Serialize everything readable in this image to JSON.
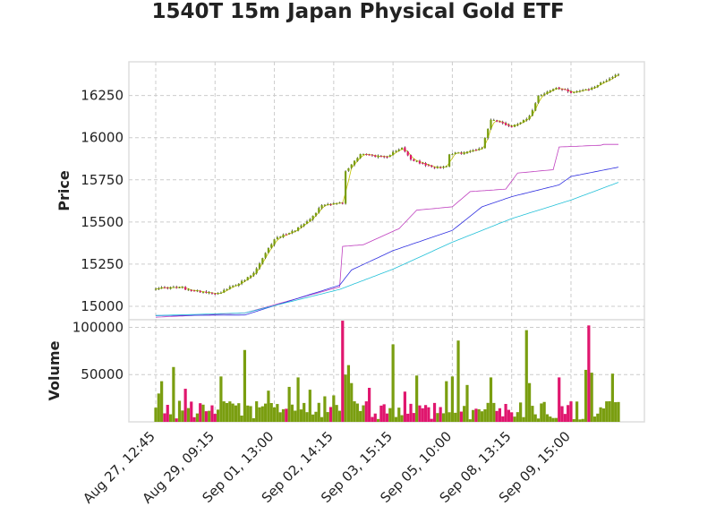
{
  "chart_data": {
    "type": "candlestick",
    "title": "1540T 15m Japan Physical Gold ETF",
    "price_panel": {
      "ylabel": "Price",
      "ylim": [
        14920,
        16450
      ],
      "yticks": [
        15000,
        15250,
        15500,
        15750,
        16000,
        16250
      ],
      "ytick_labels": [
        "15000",
        "15250",
        "15500",
        "15750",
        "16000",
        "16250"
      ]
    },
    "volume_panel": {
      "ylabel": "Volume",
      "ylim": [
        0,
        108000
      ],
      "yticks": [
        50000,
        100000
      ],
      "ytick_labels": [
        "50000",
        "100000"
      ]
    },
    "x_tick_labels": [
      "Aug 27, 12:45",
      "Aug 29, 09:15",
      "Sep 01, 13:00",
      "Sep 02, 14:15",
      "Sep 03, 15:15",
      "Sep 05, 10:00",
      "Sep 08, 13:15",
      "Sep 09, 15:00"
    ],
    "x_tick_bar_index": [
      0,
      20,
      40,
      60,
      80,
      100,
      120,
      140
    ],
    "bar_count": 157,
    "up_color": "#7a9e10",
    "down_color": "#e0166e",
    "close_segments": [
      [
        0,
        15108
      ],
      [
        9,
        15112
      ],
      [
        10,
        15098
      ],
      [
        20,
        15078
      ],
      [
        21,
        15076
      ],
      [
        30,
        15155
      ],
      [
        33,
        15195
      ],
      [
        40,
        15400
      ],
      [
        47,
        15452
      ],
      [
        53,
        15535
      ],
      [
        56,
        15602
      ],
      [
        60,
        15611
      ],
      [
        63,
        15612
      ],
      [
        64,
        15798
      ],
      [
        69,
        15905
      ],
      [
        78,
        15880
      ],
      [
        80,
        15920
      ],
      [
        83,
        15938
      ],
      [
        86,
        15870
      ],
      [
        93,
        15825
      ],
      [
        98,
        15830
      ],
      [
        99,
        15905
      ],
      [
        104,
        15910
      ],
      [
        110,
        15940
      ],
      [
        113,
        16110
      ],
      [
        120,
        16065
      ],
      [
        126,
        16125
      ],
      [
        129,
        16250
      ],
      [
        135,
        16295
      ],
      [
        140,
        16270
      ],
      [
        146,
        16285
      ],
      [
        156,
        16380
      ]
    ],
    "volume_profile": [
      [
        0,
        15000
      ],
      [
        1,
        30000
      ],
      [
        2,
        43000
      ],
      [
        3,
        9000
      ],
      [
        4,
        18000
      ],
      [
        5,
        8000
      ],
      [
        6,
        58000
      ],
      [
        9,
        12000
      ],
      [
        10,
        35000
      ],
      [
        22,
        48000
      ],
      [
        30,
        76000
      ],
      [
        38,
        33000
      ],
      [
        45,
        37000
      ],
      [
        48,
        47000
      ],
      [
        52,
        34000
      ],
      [
        57,
        27000
      ],
      [
        60,
        28000
      ],
      [
        63,
        107000
      ],
      [
        64,
        50000
      ],
      [
        65,
        60000
      ],
      [
        66,
        41000
      ],
      [
        72,
        36000
      ],
      [
        80,
        82000
      ],
      [
        84,
        32000
      ],
      [
        88,
        49000
      ],
      [
        98,
        43000
      ],
      [
        100,
        48000
      ],
      [
        102,
        86000
      ],
      [
        105,
        39000
      ],
      [
        113,
        47000
      ],
      [
        125,
        97000
      ],
      [
        126,
        41000
      ],
      [
        136,
        47000
      ],
      [
        145,
        55000
      ],
      [
        146,
        102000
      ],
      [
        147,
        52000
      ],
      [
        154,
        51000
      ],
      [
        156,
        21000
      ]
    ],
    "moving_averages": [
      {
        "color": "#c4c400",
        "knots": [
          [
            0,
            15108
          ],
          [
            156,
            16380
          ]
        ],
        "style": "lag3"
      },
      {
        "color": "#bf3fbf",
        "knots": [
          [
            0,
            14935
          ],
          [
            30,
            14960
          ],
          [
            62,
            15115
          ],
          [
            63,
            15355
          ],
          [
            70,
            15365
          ],
          [
            82,
            15460
          ],
          [
            88,
            15570
          ],
          [
            100,
            15590
          ],
          [
            106,
            15680
          ],
          [
            118,
            15695
          ],
          [
            122,
            15790
          ],
          [
            134,
            15810
          ],
          [
            136,
            15945
          ],
          [
            150,
            15955
          ],
          [
            151,
            15960
          ],
          [
            156,
            15960
          ]
        ]
      },
      {
        "color": "#2f2fe0",
        "knots": [
          [
            0,
            14945
          ],
          [
            30,
            14948
          ],
          [
            62,
            15125
          ],
          [
            66,
            15215
          ],
          [
            80,
            15330
          ],
          [
            100,
            15450
          ],
          [
            110,
            15590
          ],
          [
            120,
            15650
          ],
          [
            136,
            15720
          ],
          [
            140,
            15770
          ],
          [
            156,
            15825
          ]
        ]
      },
      {
        "color": "#22c0d8",
        "knots": [
          [
            0,
            14945
          ],
          [
            30,
            14960
          ],
          [
            62,
            15100
          ],
          [
            80,
            15220
          ],
          [
            100,
            15380
          ],
          [
            120,
            15520
          ],
          [
            140,
            15630
          ],
          [
            156,
            15735
          ]
        ]
      }
    ],
    "grid": true,
    "legend": "none"
  }
}
